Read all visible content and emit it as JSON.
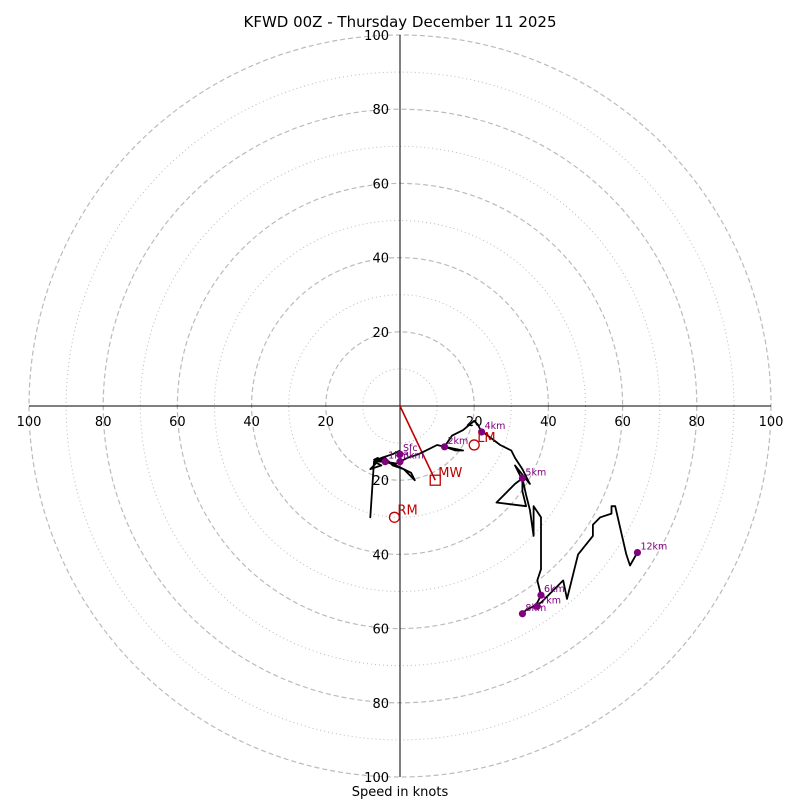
{
  "chart_data": {
    "type": "hodograph",
    "title": "KFWD 00Z - Thursday December 11 2025",
    "xlabel": "Speed in knots",
    "units": "knots",
    "axis_range": [
      -100,
      100
    ],
    "tick_labels": [
      "100",
      "80",
      "60",
      "40",
      "20",
      "20",
      "40",
      "60",
      "80",
      "100"
    ],
    "ring_major_knots": [
      20,
      40,
      60,
      80,
      100
    ],
    "ring_minor_knots": [
      10,
      30,
      50,
      70,
      90
    ],
    "colors": {
      "trace": "#000000",
      "height_points": "#800080",
      "motion": "#c00000",
      "rings": "#bbbbbb"
    },
    "hodograph_trace_uv": [
      [
        0,
        -12
      ],
      [
        -2,
        -13
      ],
      [
        -5,
        -14
      ],
      [
        -7,
        -15
      ],
      [
        -5,
        -16
      ],
      [
        -8,
        -17
      ],
      [
        -6,
        -15
      ],
      [
        -4,
        -14
      ],
      [
        -2,
        -16
      ],
      [
        1,
        -17
      ],
      [
        4,
        -20
      ],
      [
        3,
        -18
      ],
      [
        -1,
        -16
      ],
      [
        -4,
        -15
      ],
      [
        -7,
        -14.5
      ],
      [
        -6,
        -14
      ],
      [
        -5,
        -14.5
      ],
      [
        -7,
        -15
      ],
      [
        -8,
        -30
      ],
      [
        -7,
        -15
      ],
      [
        -4,
        -15
      ],
      [
        -1,
        -15.5
      ],
      [
        2,
        -14
      ],
      [
        5,
        -13
      ],
      [
        8,
        -11.5
      ],
      [
        10,
        -10.5
      ],
      [
        12,
        -11
      ],
      [
        15,
        -12
      ],
      [
        17,
        -12
      ],
      [
        12,
        -11
      ],
      [
        14,
        -8
      ],
      [
        17,
        -6.5
      ],
      [
        20,
        -4
      ],
      [
        21,
        -5
      ],
      [
        22,
        -7
      ],
      [
        23,
        -7.5
      ],
      [
        25,
        -9
      ],
      [
        27,
        -10.5
      ],
      [
        28,
        -11
      ],
      [
        30,
        -12
      ],
      [
        31,
        -14
      ],
      [
        32,
        -15.5
      ],
      [
        33,
        -17
      ],
      [
        34,
        -19
      ],
      [
        35,
        -21
      ],
      [
        31,
        -16
      ],
      [
        33,
        -20
      ],
      [
        33,
        -23
      ],
      [
        34,
        -27
      ],
      [
        26,
        -26
      ],
      [
        31,
        -21
      ],
      [
        33,
        -19.5
      ],
      [
        34,
        -24
      ],
      [
        35,
        -28
      ],
      [
        36,
        -35
      ],
      [
        36,
        -27
      ],
      [
        38,
        -30
      ],
      [
        38,
        -39
      ],
      [
        38,
        -44
      ],
      [
        37,
        -47
      ],
      [
        38,
        -51
      ],
      [
        37,
        -53
      ],
      [
        36,
        -54
      ],
      [
        34,
        -55
      ],
      [
        33,
        -56
      ],
      [
        34,
        -55
      ],
      [
        36,
        -54
      ],
      [
        38,
        -53
      ],
      [
        41,
        -50
      ],
      [
        44,
        -47
      ],
      [
        45,
        -52
      ],
      [
        46,
        -48
      ],
      [
        47,
        -44
      ],
      [
        48,
        -40
      ],
      [
        52,
        -35
      ],
      [
        52,
        -32
      ],
      [
        54,
        -30
      ],
      [
        57,
        -29
      ],
      [
        57,
        -27
      ],
      [
        58,
        -27
      ],
      [
        61,
        -40
      ],
      [
        62,
        -43
      ],
      [
        64,
        -39.5
      ]
    ],
    "height_markers": [
      {
        "label": "Sfc",
        "u": 0,
        "v": -13
      },
      {
        "label": "1km",
        "u": -4,
        "v": -15
      },
      {
        "label": "3km",
        "u": 0,
        "v": -15
      },
      {
        "label": "2km",
        "u": 12,
        "v": -11
      },
      {
        "label": "4km",
        "u": 22,
        "v": -7
      },
      {
        "label": "5km",
        "u": 33,
        "v": -19.5
      },
      {
        "label": "6km",
        "u": 38,
        "v": -51
      },
      {
        "label": "7km",
        "u": 37,
        "v": -54
      },
      {
        "label": "8km",
        "u": 33,
        "v": -56
      },
      {
        "label": "12km",
        "u": 64,
        "v": -39.5
      }
    ],
    "storm_motions": [
      {
        "label": "LM",
        "symbol": "circle",
        "u": 20,
        "v": -10.5
      },
      {
        "label": "MW",
        "symbol": "square",
        "u": 9.5,
        "v": -20
      },
      {
        "label": "RM",
        "symbol": "circle",
        "u": -1.5,
        "v": -30
      }
    ],
    "mean_wind_vector": {
      "from": [
        0,
        0
      ],
      "to": [
        9.5,
        -20
      ]
    }
  }
}
